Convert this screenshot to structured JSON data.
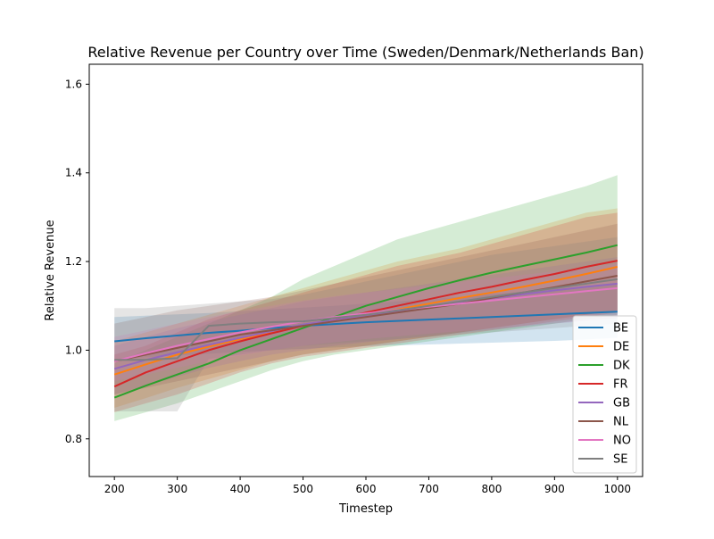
{
  "chart_data": {
    "type": "line",
    "title": "Relative Revenue per Country over Time (Sweden/Denmark/Netherlands Ban)",
    "xlabel": "Timestep",
    "ylabel": "Relative Revenue",
    "xlim": [
      160,
      1040
    ],
    "ylim": [
      0.715,
      1.645
    ],
    "xticks": [
      200,
      300,
      400,
      500,
      600,
      700,
      800,
      900,
      1000
    ],
    "yticks": [
      0.8,
      1.0,
      1.2,
      1.4,
      1.6
    ],
    "ytick_labels": [
      "0.8",
      "1.0",
      "1.2",
      "1.4",
      "1.6"
    ],
    "grid": false,
    "legend_position": "lower-right",
    "x": [
      200,
      250,
      300,
      350,
      400,
      450,
      500,
      550,
      600,
      650,
      700,
      750,
      800,
      850,
      900,
      950,
      1000
    ],
    "series": [
      {
        "name": "BE",
        "color": "#1f77b4",
        "values": [
          1.02,
          1.027,
          1.033,
          1.039,
          1.044,
          1.05,
          1.055,
          1.059,
          1.063,
          1.066,
          1.069,
          1.072,
          1.075,
          1.078,
          1.081,
          1.084,
          1.087
        ],
        "lower": [
          0.98,
          0.984,
          0.988,
          0.992,
          0.996,
          1.0,
          1.003,
          1.006,
          1.009,
          1.011,
          1.013,
          1.015,
          1.017,
          1.019,
          1.021,
          1.024,
          1.028
        ],
        "upper": [
          1.075,
          1.078,
          1.081,
          1.084,
          1.088,
          1.092,
          1.096,
          1.1,
          1.105,
          1.11,
          1.115,
          1.12,
          1.126,
          1.132,
          1.138,
          1.143,
          1.148
        ]
      },
      {
        "name": "DE",
        "color": "#ff7f0e",
        "values": [
          0.945,
          0.968,
          0.99,
          1.008,
          1.025,
          1.04,
          1.055,
          1.068,
          1.08,
          1.092,
          1.105,
          1.118,
          1.13,
          1.143,
          1.157,
          1.172,
          1.188
        ],
        "lower": [
          0.87,
          0.892,
          0.915,
          0.935,
          0.955,
          0.975,
          0.99,
          1.0,
          1.01,
          1.02,
          1.03,
          1.04,
          1.05,
          1.06,
          1.07,
          1.08,
          1.09
        ],
        "upper": [
          1.02,
          1.04,
          1.06,
          1.08,
          1.1,
          1.12,
          1.14,
          1.16,
          1.18,
          1.2,
          1.215,
          1.23,
          1.25,
          1.27,
          1.29,
          1.31,
          1.32
        ]
      },
      {
        "name": "DK",
        "color": "#2ca02c",
        "values": [
          0.893,
          0.92,
          0.945,
          0.97,
          1.0,
          1.025,
          1.05,
          1.075,
          1.1,
          1.12,
          1.14,
          1.158,
          1.175,
          1.19,
          1.205,
          1.22,
          1.237
        ],
        "lower": [
          0.84,
          0.86,
          0.88,
          0.905,
          0.93,
          0.955,
          0.975,
          0.99,
          1.0,
          1.01,
          1.02,
          1.03,
          1.04,
          1.05,
          1.06,
          1.07,
          1.08
        ],
        "upper": [
          0.97,
          1.0,
          1.03,
          1.06,
          1.09,
          1.12,
          1.16,
          1.19,
          1.22,
          1.25,
          1.27,
          1.29,
          1.31,
          1.33,
          1.35,
          1.37,
          1.395
        ]
      },
      {
        "name": "FR",
        "color": "#d62728",
        "values": [
          0.918,
          0.95,
          0.975,
          1.0,
          1.02,
          1.038,
          1.055,
          1.068,
          1.085,
          1.1,
          1.115,
          1.13,
          1.143,
          1.158,
          1.172,
          1.188,
          1.202
        ],
        "lower": [
          0.86,
          0.88,
          0.9,
          0.925,
          0.95,
          0.97,
          0.985,
          0.995,
          1.005,
          1.015,
          1.025,
          1.035,
          1.045,
          1.055,
          1.065,
          1.075,
          1.085
        ],
        "upper": [
          0.99,
          1.01,
          1.04,
          1.07,
          1.09,
          1.11,
          1.13,
          1.15,
          1.17,
          1.19,
          1.205,
          1.22,
          1.24,
          1.26,
          1.28,
          1.3,
          1.31
        ]
      },
      {
        "name": "GB",
        "color": "#9467bd",
        "values": [
          0.958,
          0.978,
          0.995,
          1.012,
          1.028,
          1.043,
          1.058,
          1.068,
          1.078,
          1.088,
          1.098,
          1.108,
          1.117,
          1.126,
          1.135,
          1.143,
          1.15
        ],
        "lower": [
          0.9,
          0.92,
          0.94,
          0.96,
          0.975,
          0.99,
          1.0,
          1.01,
          1.018,
          1.025,
          1.032,
          1.039,
          1.046,
          1.053,
          1.06,
          1.066,
          1.072
        ],
        "upper": [
          1.01,
          1.03,
          1.05,
          1.065,
          1.08,
          1.095,
          1.11,
          1.12,
          1.13,
          1.14,
          1.15,
          1.16,
          1.17,
          1.18,
          1.19,
          1.2,
          1.21
        ]
      },
      {
        "name": "NL",
        "color": "#8c564b",
        "values": [
          0.975,
          0.99,
          1.005,
          1.02,
          1.035,
          1.045,
          1.055,
          1.065,
          1.075,
          1.085,
          1.095,
          1.105,
          1.118,
          1.13,
          1.142,
          1.155,
          1.168
        ],
        "lower": [
          0.9,
          0.915,
          0.93,
          0.945,
          0.96,
          0.975,
          0.99,
          1.0,
          1.01,
          1.02,
          1.03,
          1.04,
          1.05,
          1.06,
          1.07,
          1.08,
          1.09
        ],
        "upper": [
          1.06,
          1.075,
          1.09,
          1.1,
          1.11,
          1.12,
          1.135,
          1.15,
          1.165,
          1.18,
          1.195,
          1.21,
          1.225,
          1.24,
          1.255,
          1.27,
          1.285
        ]
      },
      {
        "name": "NO",
        "color": "#e377c2",
        "values": [
          0.975,
          0.993,
          1.01,
          1.025,
          1.04,
          1.053,
          1.065,
          1.075,
          1.083,
          1.091,
          1.098,
          1.105,
          1.112,
          1.119,
          1.126,
          1.133,
          1.14
        ],
        "lower": [
          0.93,
          0.945,
          0.96,
          0.975,
          0.988,
          1.0,
          1.01,
          1.018,
          1.025,
          1.031,
          1.037,
          1.043,
          1.049,
          1.055,
          1.061,
          1.067,
          1.072
        ],
        "upper": [
          1.03,
          1.045,
          1.06,
          1.075,
          1.088,
          1.1,
          1.112,
          1.122,
          1.13,
          1.138,
          1.146,
          1.154,
          1.162,
          1.17,
          1.178,
          1.186,
          1.195
        ]
      },
      {
        "name": "SE",
        "color": "#7f7f7f",
        "values": [
          0.978,
          0.978,
          0.982,
          1.055,
          1.06,
          1.063,
          1.065,
          1.073,
          1.08,
          1.09,
          1.1,
          1.11,
          1.12,
          1.13,
          1.14,
          1.15,
          1.16
        ],
        "lower": [
          0.862,
          0.862,
          0.862,
          0.98,
          0.99,
          1.0,
          1.01,
          1.015,
          1.02,
          1.025,
          1.03,
          1.035,
          1.04,
          1.045,
          1.05,
          1.055,
          1.06
        ],
        "upper": [
          1.095,
          1.095,
          1.1,
          1.105,
          1.11,
          1.115,
          1.125,
          1.14,
          1.155,
          1.17,
          1.185,
          1.2,
          1.215,
          1.225,
          1.235,
          1.245,
          1.255
        ]
      }
    ]
  }
}
